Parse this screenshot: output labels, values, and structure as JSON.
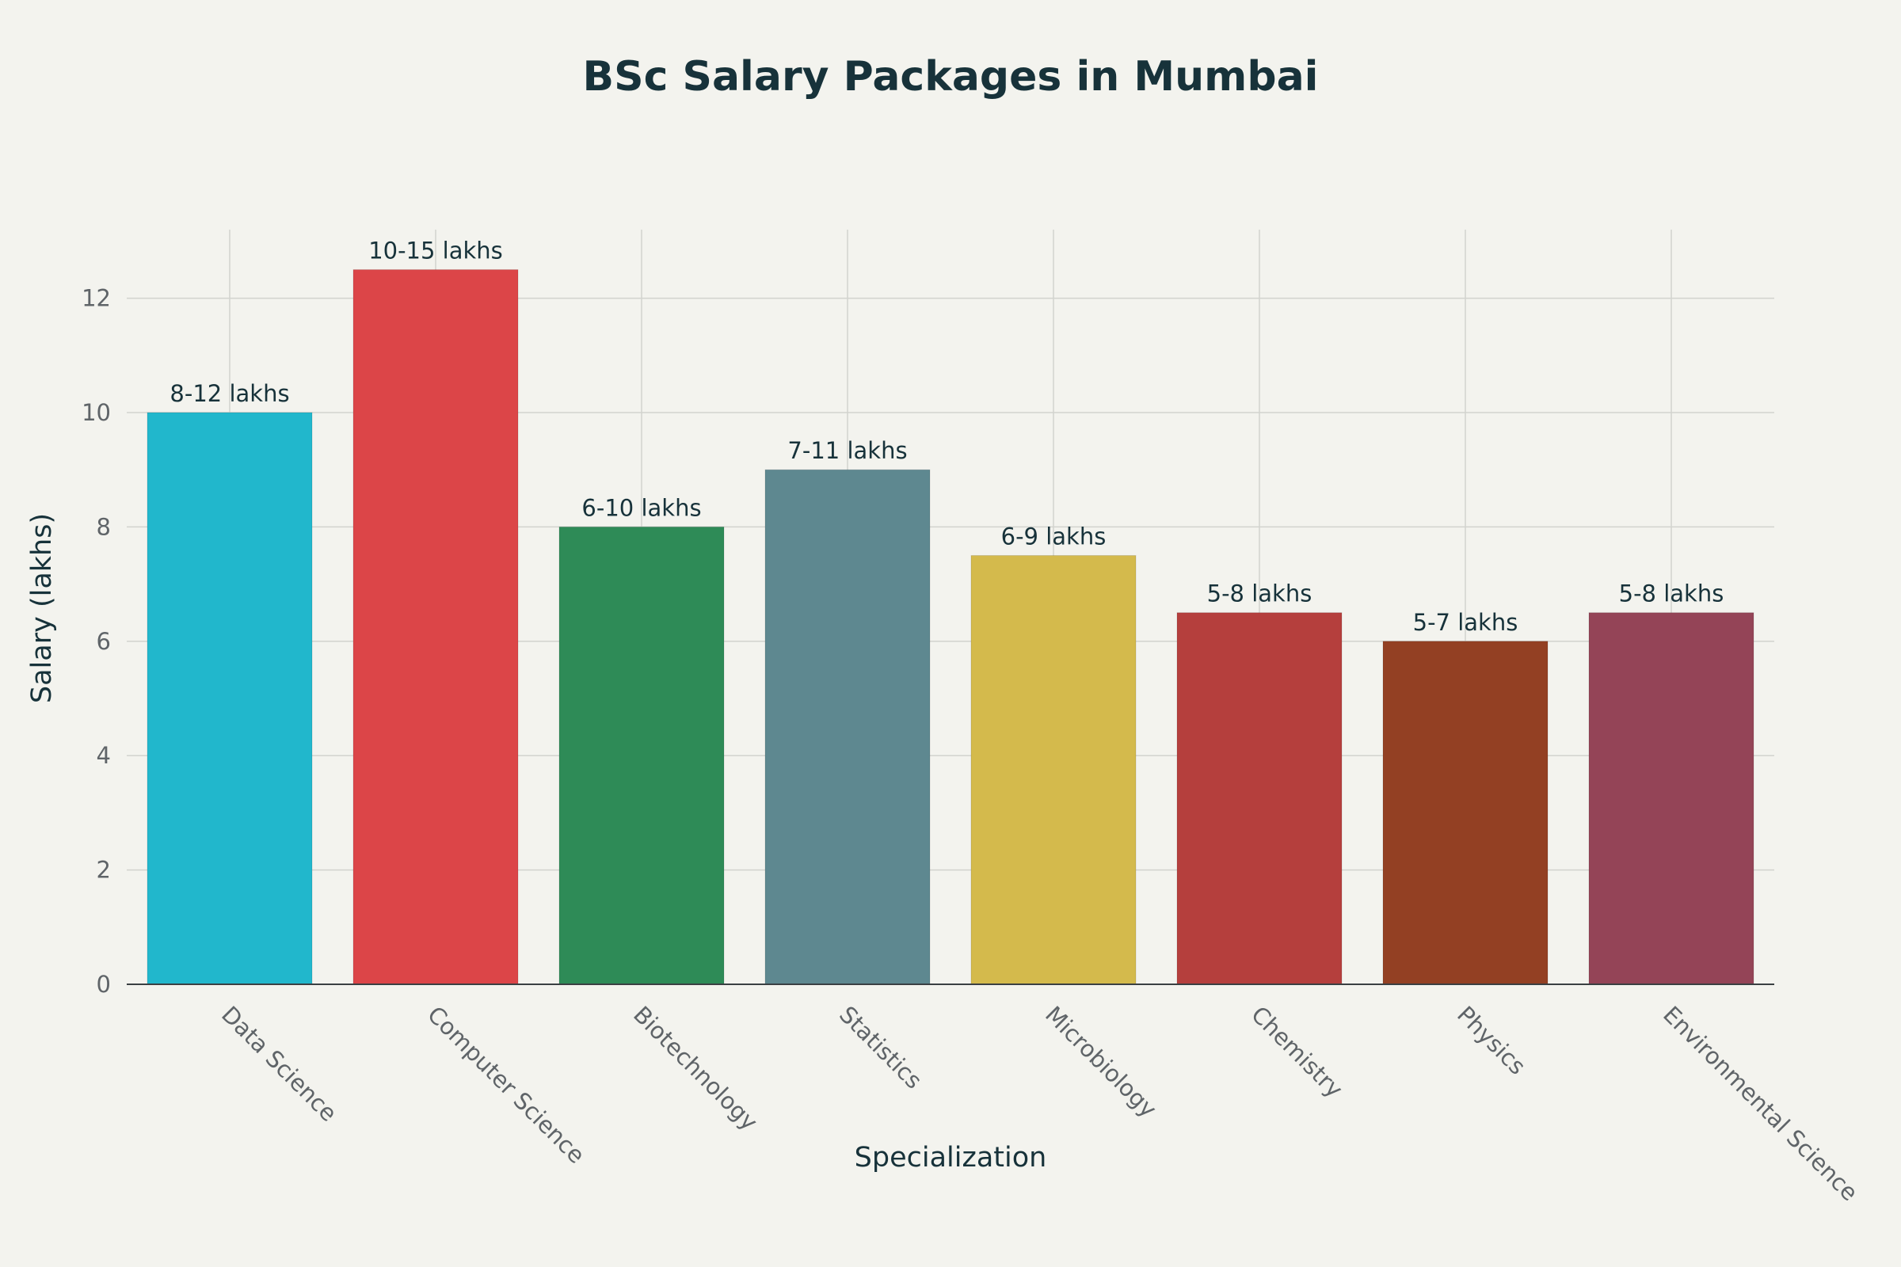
{
  "chart_data": {
    "type": "bar",
    "title": "BSc Salary Packages in Mumbai",
    "xlabel": "Specialization",
    "ylabel": "Salary (lakhs)",
    "ylim": [
      0,
      13.2
    ],
    "yticks": [
      0,
      2,
      4,
      6,
      8,
      10,
      12
    ],
    "grid": true,
    "categories": [
      "Data Science",
      "Computer Science",
      "Biotechnology",
      "Statistics",
      "Microbiology",
      "Chemistry",
      "Physics",
      "Environmental Science"
    ],
    "values": [
      10,
      12.5,
      8,
      9,
      7.5,
      6.5,
      6,
      6.5
    ],
    "data_labels": [
      "8-12 lakhs",
      "10-15 lakhs",
      "6-10 lakhs",
      "7-11 lakhs",
      "6-9 lakhs",
      "5-8 lakhs",
      "5-7 lakhs",
      "5-8 lakhs"
    ],
    "colors": [
      "#21b7cc",
      "#dc4548",
      "#2e8b57",
      "#5e8890",
      "#d4ba4c",
      "#b53f3d",
      "#934023",
      "#944457"
    ]
  }
}
